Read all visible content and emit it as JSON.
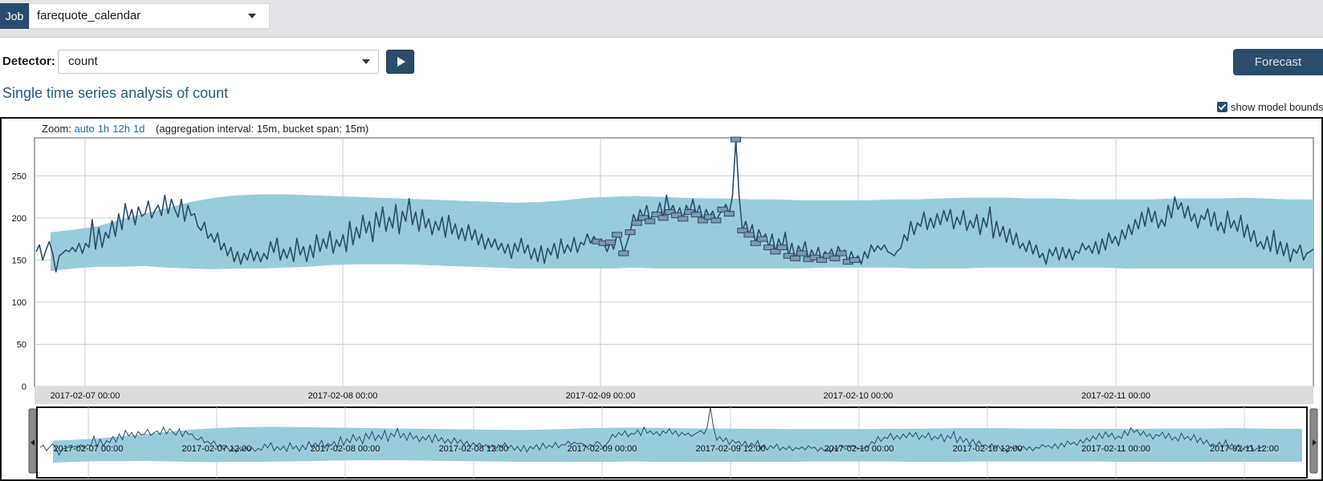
{
  "header": {
    "job_tag": "Job",
    "job_name": "farequote_calendar"
  },
  "controls": {
    "detector_label": "Detector:",
    "detector_value": "count",
    "forecast_label": "Forecast"
  },
  "title": "Single time series analysis of count",
  "model_bounds": {
    "label": "show model bounds",
    "checked": true
  },
  "zoom": {
    "label": "Zoom:",
    "options": [
      "auto",
      "1h",
      "12h",
      "1d"
    ],
    "aggregation": "(aggregation interval: 15m, bucket span: 15m)"
  },
  "colors": {
    "line": "#2b4d6b",
    "bounds": "#98ccdb",
    "anomaly": "#7e98ac",
    "accent": "#2b4d6b"
  },
  "chart_data": {
    "type": "line",
    "ylim": [
      0,
      295
    ],
    "y_ticks": [
      0,
      50,
      100,
      150,
      200,
      250
    ],
    "x_tick_labels": [
      "2017-02-07 00:00",
      "2017-02-08 00:00",
      "2017-02-09 00:00",
      "2017-02-10 00:00",
      "2017-02-11 00:00"
    ],
    "context_tick_labels": [
      "2017-02-07 00:00",
      "2017-02-07 12:00",
      "2017-02-08 00:00",
      "2017-02-08 12:00",
      "2017-02-09 00:00",
      "2017-02-09 12:00",
      "2017-02-10 00:00",
      "2017-02-10 12:00",
      "2017-02-11 00:00",
      "2017-02-11 12:00"
    ],
    "series": [
      {
        "values": [
          160,
          168,
          150,
          162,
          172,
          158,
          136,
          155,
          158,
          162,
          160,
          165,
          160,
          170,
          158,
          170,
          165,
          198,
          163,
          188,
          165,
          183,
          176,
          197,
          178,
          205,
          186,
          217,
          198,
          210,
          192,
          213,
          202,
          205,
          220,
          200,
          209,
          215,
          203,
          227,
          205,
          222,
          210,
          201,
          222,
          196,
          215,
          203,
          205,
          190,
          185,
          195,
          176,
          181,
          171,
          182,
          162,
          170,
          155,
          165,
          148,
          160,
          145,
          158,
          150,
          163,
          149,
          160,
          148,
          158,
          151,
          172,
          159,
          176,
          150,
          163,
          152,
          165,
          148,
          176,
          156,
          166,
          148,
          168,
          153,
          180,
          160,
          175,
          164,
          184,
          158,
          174,
          166,
          180,
          160,
          196,
          168,
          189,
          176,
          203,
          182,
          196,
          172,
          207,
          189,
          213,
          184,
          201,
          188,
          216,
          181,
          208,
          196,
          223,
          192,
          207,
          184,
          210,
          188,
          199,
          180,
          196,
          185,
          201,
          177,
          203,
          181,
          193,
          175,
          188,
          173,
          192,
          174,
          186,
          168,
          181,
          163,
          176,
          165,
          175,
          162,
          170,
          158,
          169,
          152,
          170,
          160,
          176,
          158,
          168,
          151,
          164,
          148,
          167,
          146,
          164,
          156,
          170,
          152,
          175,
          158,
          168,
          160,
          177,
          159,
          171,
          168,
          181,
          170,
          178,
          172,
          175,
          170,
          160,
          171,
          163,
          180,
          175,
          158,
          170,
          183,
          204,
          194,
          210,
          200,
          215,
          196,
          207,
          204,
          218,
          200,
          227,
          207,
          215,
          203,
          212,
          199,
          215,
          207,
          222,
          204,
          215,
          197,
          210,
          201,
          208,
          197,
          204,
          210,
          216,
          205,
          226,
          293,
          226,
          185,
          196,
          180,
          192,
          170,
          186,
          175,
          181,
          165,
          181,
          160,
          175,
          165,
          183,
          155,
          170,
          152,
          167,
          158,
          172,
          151,
          162,
          153,
          165,
          150,
          160,
          155,
          163,
          152,
          166,
          158,
          162,
          148,
          160,
          150,
          155,
          145,
          160,
          152,
          168,
          160,
          167,
          162,
          168,
          160,
          158,
          155,
          161,
          164,
          180,
          173,
          196,
          180,
          194,
          190,
          207,
          186,
          200,
          188,
          205,
          192,
          209,
          196,
          210,
          187,
          201,
          192,
          209,
          185,
          197,
          188,
          204,
          180,
          200,
          189,
          213,
          176,
          196,
          178,
          190,
          171,
          187,
          168,
          182,
          164,
          170,
          160,
          173,
          157,
          168,
          153,
          158,
          145,
          163,
          155,
          165,
          150,
          165,
          152,
          163,
          150,
          161,
          158,
          170,
          162,
          167,
          158,
          172,
          157,
          175,
          162,
          182,
          170,
          178,
          167,
          186,
          175,
          192,
          180,
          198,
          187,
          207,
          190,
          212,
          195,
          208,
          188,
          198,
          190,
          215,
          200,
          225,
          210,
          218,
          200,
          214,
          196,
          205,
          188,
          203,
          198,
          211,
          190,
          207,
          185,
          195,
          182,
          208,
          188,
          197,
          184,
          203,
          177,
          192,
          172,
          185,
          166,
          172,
          163,
          178,
          160,
          185,
          157,
          172,
          155,
          170,
          148,
          163,
          158,
          168,
          150,
          158,
          160,
          163
        ]
      }
    ],
    "bounds_upper": [
      183,
      186,
      190,
      198,
      205,
      212,
      219,
      224,
      227,
      228,
      228,
      227,
      226,
      225,
      224,
      223,
      222,
      221,
      220,
      219,
      218,
      219,
      221,
      224,
      225,
      226,
      225,
      224,
      223,
      223,
      222,
      222,
      221,
      221,
      221,
      221,
      222,
      222,
      223,
      224,
      224,
      224,
      223,
      223,
      222,
      222,
      222,
      222,
      223,
      223,
      223,
      224,
      223,
      222,
      222
    ],
    "bounds_lower": [
      137,
      140,
      142,
      142,
      143,
      141,
      140,
      139,
      140,
      140,
      141,
      142,
      144,
      145,
      145,
      145,
      144,
      143,
      142,
      141,
      140,
      140,
      140,
      140,
      140,
      141,
      140,
      140,
      140,
      140,
      140,
      140,
      140,
      141,
      141,
      141,
      141,
      140,
      140,
      140,
      141,
      141,
      141,
      141,
      141,
      141,
      140,
      140,
      140,
      140,
      140,
      140,
      140,
      140,
      140
    ]
  }
}
